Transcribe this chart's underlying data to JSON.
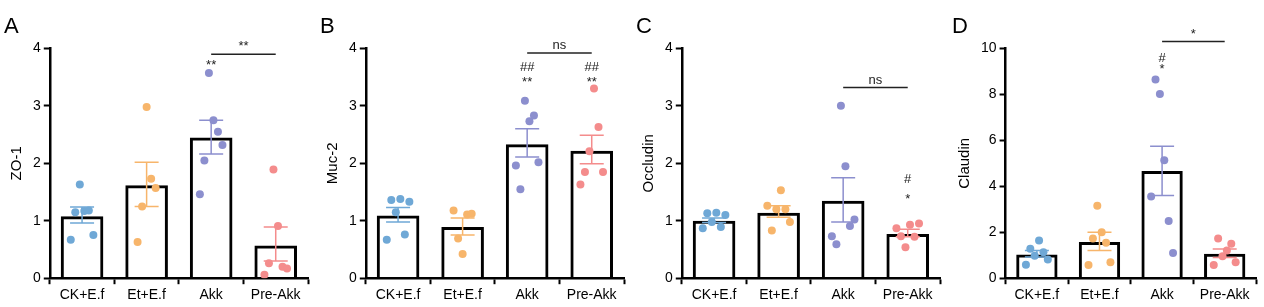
{
  "chart_data": [
    {
      "type": "bar",
      "title": "A",
      "ylabel": "ZO-1",
      "categories": [
        "CK+E.f",
        "Et+E.f",
        "Akk",
        "Pre-Akk"
      ],
      "ylim": [
        0,
        4
      ],
      "yticks": [
        0,
        1,
        2,
        3,
        4
      ],
      "grid": false,
      "legend": false,
      "series": [
        {
          "type": "bar",
          "color": "#000000",
          "values": [
            1.08,
            1.62,
            2.45,
            0.57
          ],
          "errors": [
            [
              0.96,
              1.24
            ],
            [
              1.25,
              2.02
            ],
            [
              2.16,
              2.75
            ],
            [
              0.3,
              0.89
            ]
          ]
        },
        {
          "type": "scatter",
          "x": [
            "CK+E.f",
            "CK+E.f",
            "CK+E.f",
            "CK+E.f",
            "CK+E.f",
            "CK+E.f",
            "Et+E.f",
            "Et+E.f",
            "Et+E.f",
            "Et+E.f",
            "Et+E.f",
            "Akk",
            "Akk",
            "Akk",
            "Akk",
            "Akk",
            "Akk",
            "Pre-Akk",
            "Pre-Akk",
            "Pre-Akk",
            "Pre-Akk",
            "Pre-Akk",
            "Pre-Akk"
          ],
          "values": [
            0.67,
            1.15,
            1.63,
            1.17,
            1.18,
            0.75,
            0.63,
            1.25,
            2.98,
            1.73,
            1.57,
            1.46,
            2.05,
            3.57,
            2.75,
            2.55,
            2.32,
            0.06,
            0.26,
            1.89,
            0.91,
            0.2,
            0.17
          ],
          "colors": [
            "#6fa8d6",
            "#6fa8d6",
            "#6fa8d6",
            "#6fa8d6",
            "#6fa8d6",
            "#6fa8d6",
            "#f7b56b",
            "#f7b56b",
            "#f7b56b",
            "#f7b56b",
            "#f7b56b",
            "#8c8fce",
            "#8c8fce",
            "#8c8fce",
            "#8c8fce",
            "#8c8fce",
            "#8c8fce",
            "#f48c8c",
            "#f48c8c",
            "#f48c8c",
            "#f48c8c",
            "#f48c8c",
            "#f48c8c"
          ]
        }
      ],
      "annotations": [
        "**",
        "**"
      ]
    },
    {
      "type": "bar",
      "title": "B",
      "ylabel": "Muc-2",
      "categories": [
        "CK+E.f",
        "Et+E.f",
        "Akk",
        "Pre-Akk"
      ],
      "ylim": [
        0,
        4
      ],
      "yticks": [
        0,
        1,
        2,
        3,
        4
      ],
      "grid": false,
      "legend": false,
      "series": [
        {
          "type": "bar",
          "color": "#000000",
          "values": [
            1.09,
            0.89,
            2.33,
            2.22
          ],
          "errors": [
            [
              0.98,
              1.23
            ],
            [
              0.75,
              1.05
            ],
            [
              2.11,
              2.6
            ],
            [
              1.99,
              2.49
            ]
          ]
        },
        {
          "type": "scatter",
          "x": [
            "CK+E.f",
            "CK+E.f",
            "CK+E.f",
            "CK+E.f",
            "CK+E.f",
            "CK+E.f",
            "Et+E.f",
            "Et+E.f",
            "Et+E.f",
            "Et+E.f",
            "Et+E.f",
            "Akk",
            "Akk",
            "Akk",
            "Akk",
            "Akk",
            "Akk",
            "Pre-Akk",
            "Pre-Akk",
            "Pre-Akk",
            "Pre-Akk",
            "Pre-Akk",
            "Pre-Akk"
          ],
          "values": [
            0.67,
            1.36,
            1.15,
            1.38,
            0.76,
            1.33,
            1.18,
            0.69,
            0.42,
            1.11,
            1.12,
            1.96,
            1.55,
            3.09,
            2.73,
            2.83,
            2.02,
            1.63,
            1.85,
            2.21,
            3.3,
            2.63,
            1.85
          ],
          "colors": [
            "#6fa8d6",
            "#6fa8d6",
            "#6fa8d6",
            "#6fa8d6",
            "#6fa8d6",
            "#6fa8d6",
            "#f7b56b",
            "#f7b56b",
            "#f7b56b",
            "#f7b56b",
            "#f7b56b",
            "#8c8fce",
            "#8c8fce",
            "#8c8fce",
            "#8c8fce",
            "#8c8fce",
            "#8c8fce",
            "#f48c8c",
            "#f48c8c",
            "#f48c8c",
            "#f48c8c",
            "#f48c8c",
            "#f48c8c"
          ]
        }
      ],
      "annotations": [
        "##",
        "**",
        "##",
        "**",
        "ns"
      ]
    },
    {
      "type": "bar",
      "title": "C",
      "ylabel": "Occludin",
      "categories": [
        "CK+E.f",
        "Et+E.f",
        "Akk",
        "Pre-Akk"
      ],
      "ylim": [
        0,
        4
      ],
      "yticks": [
        0,
        1,
        2,
        3,
        4
      ],
      "grid": false,
      "legend": false,
      "series": [
        {
          "type": "bar",
          "color": "#000000",
          "values": [
            1.0,
            1.14,
            1.35,
            0.77
          ],
          "errors": [
            [
              0.97,
              1.05
            ],
            [
              1.06,
              1.26
            ],
            [
              0.98,
              1.75
            ],
            [
              0.72,
              0.85
            ]
          ]
        },
        {
          "type": "scatter",
          "x": [
            "CK+E.f",
            "CK+E.f",
            "CK+E.f",
            "CK+E.f",
            "CK+E.f",
            "CK+E.f",
            "Et+E.f",
            "Et+E.f",
            "Et+E.f",
            "Et+E.f",
            "Et+E.f",
            "Et+E.f",
            "Akk",
            "Akk",
            "Akk",
            "Akk",
            "Akk",
            "Akk",
            "Pre-Akk",
            "Pre-Akk",
            "Pre-Akk",
            "Pre-Akk",
            "Pre-Akk",
            "Pre-Akk"
          ],
          "values": [
            0.87,
            1.13,
            0.98,
            1.14,
            0.89,
            1.1,
            1.26,
            0.83,
            1.2,
            1.53,
            1.2,
            0.98,
            0.73,
            0.59,
            3.0,
            1.95,
            0.91,
            1.02,
            0.87,
            0.73,
            0.54,
            0.93,
            0.72,
            0.95
          ],
          "colors": [
            "#6fa8d6",
            "#6fa8d6",
            "#6fa8d6",
            "#6fa8d6",
            "#6fa8d6",
            "#6fa8d6",
            "#f7b56b",
            "#f7b56b",
            "#f7b56b",
            "#f7b56b",
            "#f7b56b",
            "#f7b56b",
            "#8c8fce",
            "#8c8fce",
            "#8c8fce",
            "#8c8fce",
            "#8c8fce",
            "#8c8fce",
            "#f48c8c",
            "#f48c8c",
            "#f48c8c",
            "#f48c8c",
            "#f48c8c",
            "#f48c8c"
          ]
        }
      ],
      "annotations": [
        "#",
        "*",
        "ns"
      ]
    },
    {
      "type": "bar",
      "title": "D",
      "ylabel": "Claudin",
      "categories": [
        "CK+E.f",
        "Et+E.f",
        "Akk",
        "Pre-Akk"
      ],
      "ylim": [
        0,
        10
      ],
      "yticks": [
        0,
        2,
        4,
        6,
        8,
        10
      ],
      "grid": false,
      "legend": false,
      "series": [
        {
          "type": "bar",
          "color": "#000000",
          "values": [
            1.03,
            1.57,
            4.66,
            1.06
          ],
          "errors": [
            [
              0.92,
              1.2
            ],
            [
              1.2,
              2.0
            ],
            [
              3.6,
              5.74
            ],
            [
              0.9,
              1.27
            ]
          ]
        },
        {
          "type": "scatter",
          "x": [
            "CK+E.f",
            "CK+E.f",
            "CK+E.f",
            "CK+E.f",
            "CK+E.f",
            "CK+E.f",
            "Et+E.f",
            "Et+E.f",
            "Et+E.f",
            "Et+E.f",
            "Et+E.f",
            "Et+E.f",
            "Akk",
            "Akk",
            "Akk",
            "Akk",
            "Akk",
            "Akk",
            "Pre-Akk",
            "Pre-Akk",
            "Pre-Akk",
            "Pre-Akk",
            "Pre-Akk",
            "Pre-Akk"
          ],
          "values": [
            0.59,
            1.28,
            0.98,
            1.64,
            1.13,
            0.81,
            0.57,
            1.73,
            3.15,
            2.0,
            1.54,
            0.69,
            3.56,
            8.65,
            8.02,
            5.13,
            2.49,
            1.1,
            0.57,
            1.73,
            0.95,
            1.2,
            1.5,
            0.69
          ],
          "colors": [
            "#6fa8d6",
            "#6fa8d6",
            "#6fa8d6",
            "#6fa8d6",
            "#6fa8d6",
            "#6fa8d6",
            "#f7b56b",
            "#f7b56b",
            "#f7b56b",
            "#f7b56b",
            "#f7b56b",
            "#f7b56b",
            "#8c8fce",
            "#8c8fce",
            "#8c8fce",
            "#8c8fce",
            "#8c8fce",
            "#8c8fce",
            "#f48c8c",
            "#f48c8c",
            "#f48c8c",
            "#f48c8c",
            "#f48c8c",
            "#f48c8c"
          ]
        }
      ],
      "annotations": [
        "#",
        "*",
        "*"
      ]
    }
  ]
}
